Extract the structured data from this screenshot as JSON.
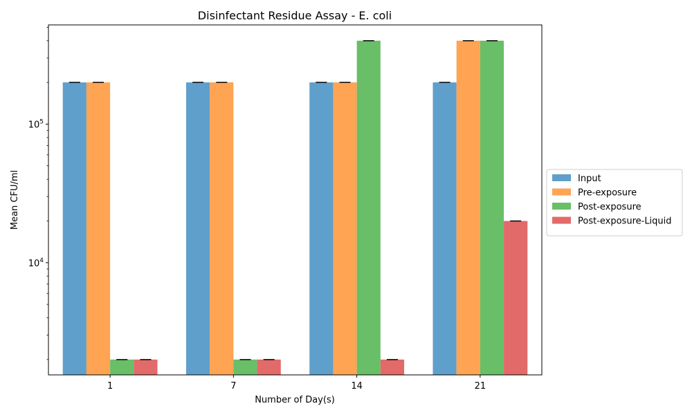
{
  "chart_data": {
    "type": "bar",
    "title": "Disinfectant Residue Assay - E. coli",
    "xlabel": "Number of Day(s)",
    "ylabel": "Mean CFU/ml",
    "yscale": "log",
    "ylim": [
      1550,
      520000
    ],
    "categories": [
      "1",
      "7",
      "14",
      "21"
    ],
    "series": [
      {
        "name": "Input",
        "color": "#5f9fcb",
        "values": [
          200000,
          200000,
          200000,
          200000
        ]
      },
      {
        "name": "Pre-exposure",
        "color": "#fea453",
        "values": [
          200000,
          200000,
          200000,
          400000
        ]
      },
      {
        "name": "Post-exposure",
        "color": "#69be68",
        "values": [
          2000,
          2000,
          400000,
          400000
        ]
      },
      {
        "name": "Post-exposure-Liquid",
        "color": "#e26a69",
        "values": [
          2000,
          2000,
          2000,
          20000
        ]
      }
    ],
    "y_major_ticks": [
      {
        "value": 10000,
        "base": "10",
        "exp": "4"
      },
      {
        "value": 100000,
        "base": "10",
        "exp": "5"
      }
    ],
    "error_bars": true,
    "grid": false,
    "legend_position": "outside-right"
  }
}
